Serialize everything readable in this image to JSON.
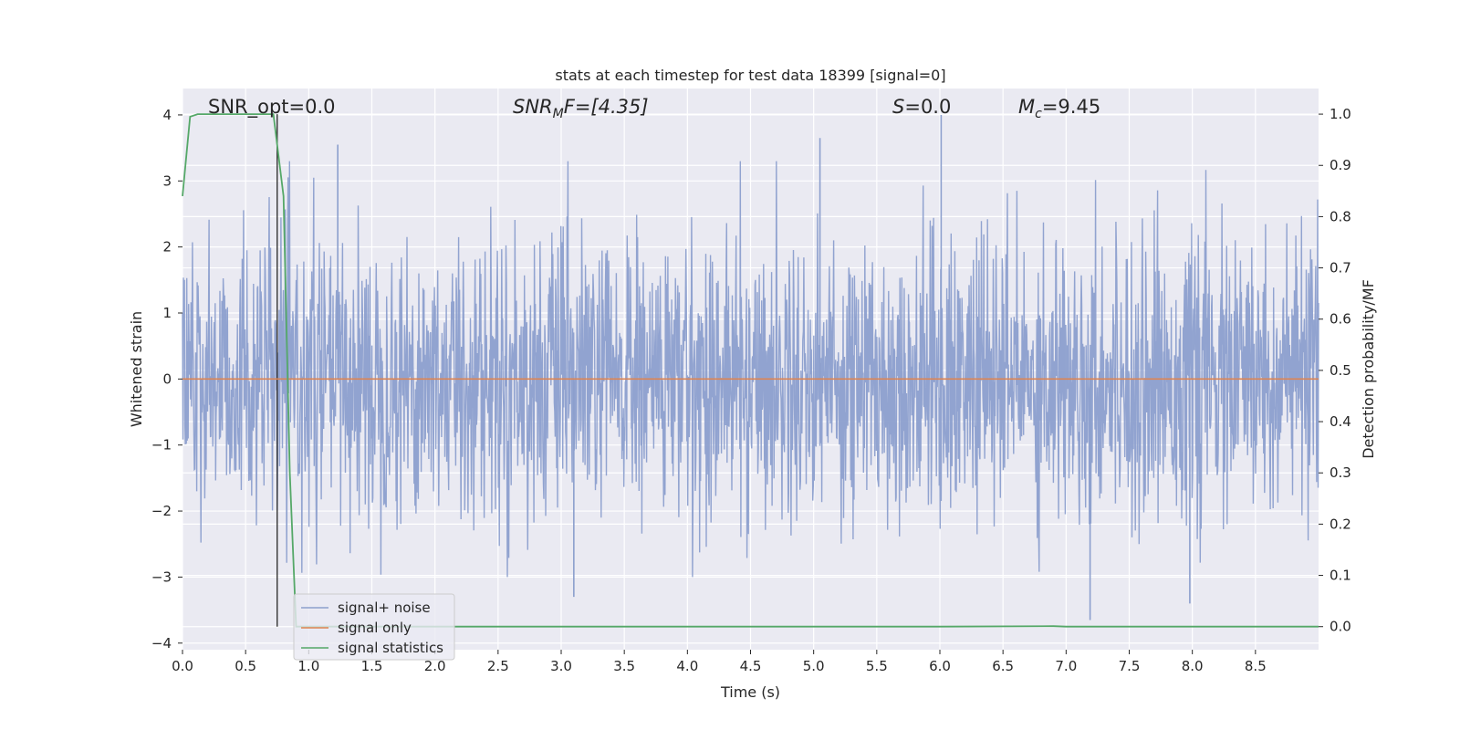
{
  "chart_data": {
    "type": "line",
    "title": "stats at each timestep for test data 18399 [signal=0]",
    "xlabel": "Time (s)",
    "ylabel": "Whitened strain",
    "ylabel_right": "Detection probability/MF",
    "xlim": [
      0,
      9.0
    ],
    "ylim": [
      -4.1,
      4.4
    ],
    "ylim_right": [
      -0.045,
      1.05
    ],
    "x_ticks": [
      0.0,
      0.5,
      1.0,
      1.5,
      2.0,
      2.5,
      3.0,
      3.5,
      4.0,
      4.5,
      5.0,
      5.5,
      6.0,
      6.5,
      7.0,
      7.5,
      8.0,
      8.5
    ],
    "x_tick_labels": [
      "0.0",
      "0.5",
      "1.0",
      "1.5",
      "2.0",
      "2.5",
      "3.0",
      "3.5",
      "4.0",
      "4.5",
      "5.0",
      "5.5",
      "6.0",
      "6.5",
      "7.0",
      "7.5",
      "8.0",
      "8.5"
    ],
    "y_ticks": [
      -4,
      -3,
      -2,
      -1,
      0,
      1,
      2,
      3,
      4
    ],
    "y_tick_labels": [
      "−4",
      "−3",
      "−2",
      "−1",
      "0",
      "1",
      "2",
      "3",
      "4"
    ],
    "y_right_ticks": [
      0.0,
      0.1,
      0.2,
      0.3,
      0.4,
      0.5,
      0.6,
      0.7,
      0.8,
      0.9,
      1.0
    ],
    "y_right_tick_labels": [
      "0.0",
      "0.1",
      "0.2",
      "0.3",
      "0.4",
      "0.5",
      "0.6",
      "0.7",
      "0.8",
      "0.9",
      "1.0"
    ],
    "grid": true,
    "legend_position": "bottom-left",
    "annotations": {
      "snr_opt": "SNR_opt=0.0",
      "snr_mf_main": "SNR",
      "snr_mf_sub": "M",
      "snr_mf_rest": "F=[4.35]",
      "s_main": "S",
      "s_rest": "=0.0",
      "mc_main": "M",
      "mc_sub": "c",
      "mc_rest": "=9.45"
    },
    "marker_line_x": 0.75,
    "series": [
      {
        "name": "signal+ noise",
        "color": "#8c9fcd",
        "axis": "left",
        "style": "dense noise trace (~1 std), peaks near ±3.5",
        "notable_peaks": [
          {
            "x": 1.23,
            "y": 3.55
          },
          {
            "x": 5.05,
            "y": 3.65
          },
          {
            "x": 6.01,
            "y": 4.0
          },
          {
            "x": 7.19,
            "y": -3.65
          },
          {
            "x": 3.1,
            "y": -3.3
          },
          {
            "x": 7.98,
            "y": -3.4
          }
        ]
      },
      {
        "name": "signal only",
        "color": "#dd8452",
        "axis": "left",
        "x": [
          0.0,
          9.0
        ],
        "y": [
          0.0,
          0.0
        ]
      },
      {
        "name": "signal statistics",
        "color": "#55a868",
        "axis": "right",
        "x": [
          0.0,
          0.06,
          0.12,
          0.25,
          0.5,
          0.72,
          0.8,
          0.85,
          0.9,
          1.0,
          2.0,
          4.0,
          6.0,
          6.9,
          7.0,
          8.0,
          9.0
        ],
        "y": [
          0.84,
          0.995,
          1.0,
          1.0,
          1.0,
          1.0,
          0.84,
          0.3,
          0.0,
          0.0,
          0.0,
          0.0,
          0.0,
          0.001,
          0.0,
          0.0,
          0.0
        ]
      }
    ]
  }
}
